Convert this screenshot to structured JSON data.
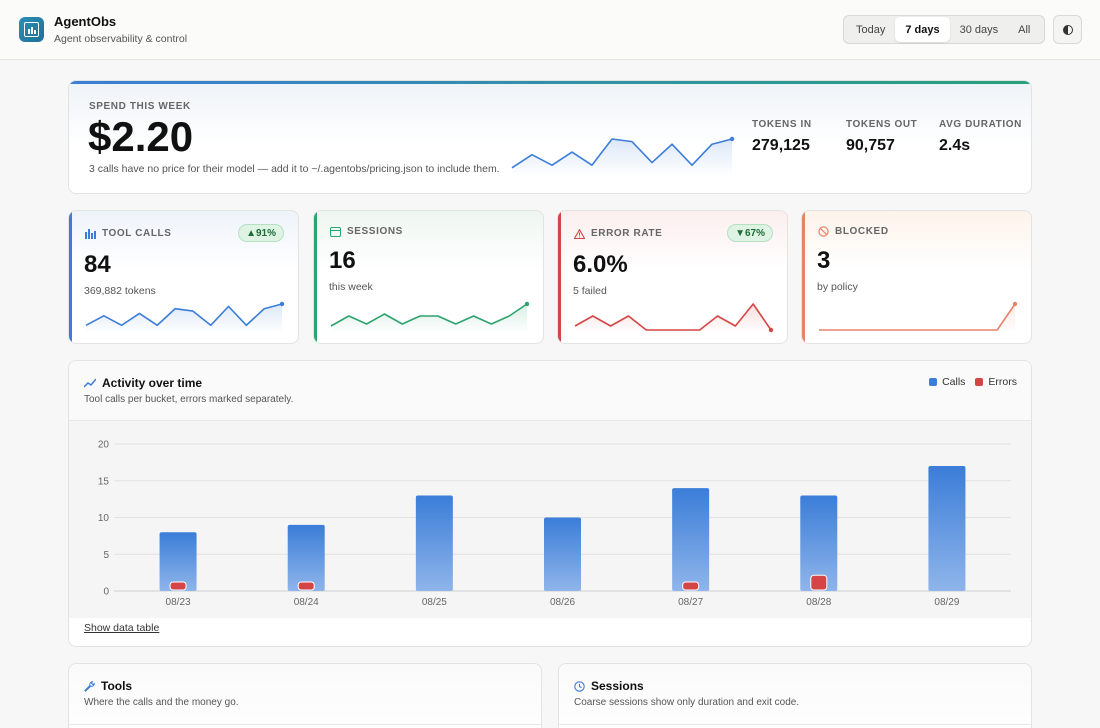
{
  "header": {
    "title": "AgentObs",
    "subtitle": "Agent observability & control",
    "ranges": [
      "Today",
      "7 days",
      "30 days",
      "All"
    ],
    "active_range": "7 days",
    "theme_icon": "half-circle-icon"
  },
  "spend": {
    "label": "SPEND THIS WEEK",
    "amount": "$2.20",
    "note": "3 calls have no price for their model — add it to ~/.agentobs/pricing.json to include them.",
    "trend": [
      2,
      7,
      3,
      8,
      3,
      13,
      12,
      4,
      11,
      3,
      11,
      13
    ],
    "stats": [
      {
        "label": "TOKENS IN",
        "value": "279,125"
      },
      {
        "label": "TOKENS OUT",
        "value": "90,757"
      },
      {
        "label": "AVG DURATION",
        "value": "2.4s"
      }
    ]
  },
  "kpis": [
    {
      "label": "TOOL CALLS",
      "value": "84",
      "sub": "369,882 tokens",
      "badge": "▲91%",
      "icon": "bar-chart-icon",
      "color": "#3b7dd8",
      "trend": [
        2,
        6,
        2,
        7,
        2,
        9,
        8,
        2,
        10,
        2,
        9,
        11
      ]
    },
    {
      "label": "SESSIONS",
      "value": "16",
      "sub": "this week",
      "badge": "",
      "icon": "window-icon",
      "color": "#2ea36f",
      "trend": [
        2,
        7,
        3,
        8,
        3,
        7,
        7,
        3,
        7,
        3,
        7,
        13
      ]
    },
    {
      "label": "ERROR RATE",
      "value": "6.0%",
      "sub": "5 failed",
      "badge": "▼67%",
      "icon": "warning-icon",
      "color": "#d64545",
      "trend": [
        2,
        7,
        2,
        7,
        0,
        0,
        0,
        0,
        7,
        2,
        13,
        0
      ]
    },
    {
      "label": "BLOCKED",
      "value": "3",
      "sub": "by policy",
      "badge": "",
      "icon": "no-entry-icon",
      "color": "#e6846a",
      "trend": [
        0,
        0,
        0,
        0,
        0,
        0,
        0,
        0,
        0,
        0,
        0,
        10
      ]
    }
  ],
  "activity": {
    "title": "Activity over time",
    "subtitle": "Tool calls per bucket, errors marked separately.",
    "legend_calls": "Calls",
    "legend_errors": "Errors",
    "toggle": "Show data table"
  },
  "chart_data": {
    "type": "bar",
    "categories": [
      "08/23",
      "08/24",
      "08/25",
      "08/26",
      "08/27",
      "08/28",
      "08/29"
    ],
    "series": [
      {
        "name": "Calls",
        "values": [
          8,
          9,
          13,
          10,
          14,
          13,
          17
        ]
      },
      {
        "name": "Errors",
        "values": [
          1,
          1,
          0,
          0,
          1,
          2,
          0
        ]
      }
    ],
    "ylim": [
      0,
      20
    ],
    "yticks": [
      0,
      5,
      10,
      15,
      20
    ],
    "colors": {
      "calls": "#3b7dd8",
      "errors": "#d64545"
    },
    "legend": "top-right",
    "grid": true
  },
  "tools": {
    "title": "Tools",
    "subtitle": "Where the calls and the money go.",
    "icon": "wrench-icon"
  },
  "sessions": {
    "title": "Sessions",
    "subtitle": "Coarse sessions show only duration and exit code.",
    "icon": "clock-icon"
  }
}
